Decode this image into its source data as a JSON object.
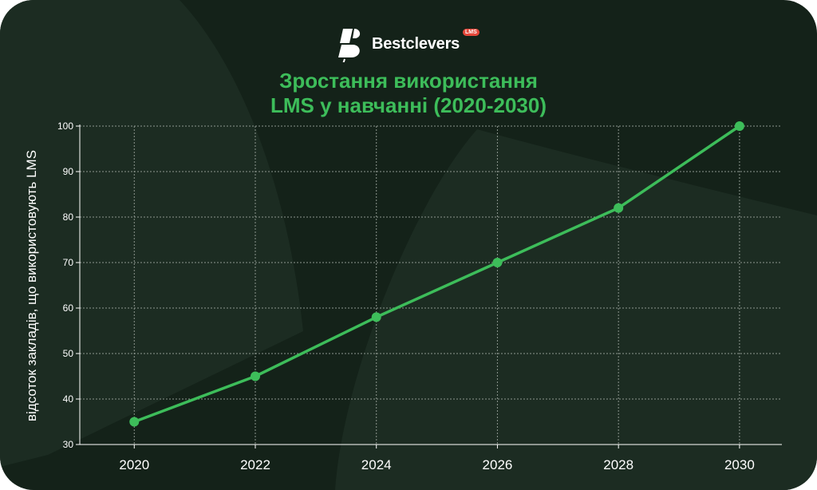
{
  "brand": {
    "name": "Bestclevers",
    "badge": "LMS",
    "icon": "bestclevers-logo-icon"
  },
  "colors": {
    "background": "#142219",
    "accent": "#3dbd5a",
    "grid": "#8d968f",
    "text": "#ffffff"
  },
  "chart_data": {
    "type": "line",
    "title_line1": "Зростання використання",
    "title_line2": "LMS у навчанні (2020-2030)",
    "xlabel": "",
    "ylabel": "відсоток закладів, що використовують LMS",
    "x": [
      2020,
      2022,
      2024,
      2026,
      2028,
      2030
    ],
    "x_ticks": [
      "2020",
      "2022",
      "2024",
      "2026",
      "2028",
      "2030"
    ],
    "y_ticks": [
      "30",
      "40",
      "50",
      "60",
      "70",
      "80",
      "90",
      "100"
    ],
    "ylim": [
      30,
      100
    ],
    "xlim": [
      2019.1,
      2030.7
    ],
    "series": [
      {
        "values": [
          35,
          45,
          58,
          70,
          82,
          100
        ],
        "color": "#3dbd5a",
        "marker": "circle"
      }
    ],
    "grid": true,
    "legend": "none"
  }
}
